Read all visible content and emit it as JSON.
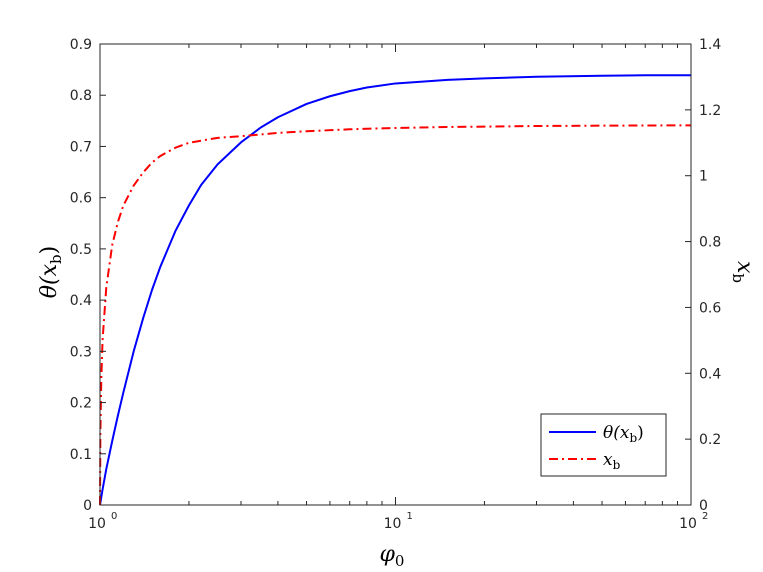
{
  "chart_data": {
    "type": "line",
    "x_scale": "log",
    "xlim": [
      1,
      100
    ],
    "ylim_left": [
      0,
      0.9
    ],
    "ylim_right": [
      0,
      1.4
    ],
    "xlabel": {
      "base": "φ",
      "sub": "0"
    },
    "ylabel_left": {
      "base": "θ(x",
      "sub": "b",
      "tail": ")"
    },
    "ylabel_right": {
      "base": "x",
      "sub": "b"
    },
    "x_ticks": [
      {
        "base": "10",
        "exp": "0",
        "value": 1
      },
      {
        "base": "10",
        "exp": "1",
        "value": 10
      },
      {
        "base": "10",
        "exp": "2",
        "value": 100
      }
    ],
    "y_left_ticks": [
      "0",
      "0.1",
      "0.2",
      "0.3",
      "0.4",
      "0.5",
      "0.6",
      "0.7",
      "0.8",
      "0.9"
    ],
    "y_left_tick_values": [
      0,
      0.1,
      0.2,
      0.3,
      0.4,
      0.5,
      0.6,
      0.7,
      0.8,
      0.9
    ],
    "y_right_ticks": [
      "0",
      "0.2",
      "0.4",
      "0.6",
      "0.8",
      "1",
      "1.2",
      "1.4"
    ],
    "y_right_tick_values": [
      0,
      0.2,
      0.4,
      0.6,
      0.8,
      1.0,
      1.2,
      1.4
    ],
    "legend_position": "bottom-right",
    "series": [
      {
        "name": "θ(x_b)",
        "legend": {
          "base": "θ(x",
          "sub": "b",
          "tail": ")"
        },
        "axis": "left",
        "color": "#0000ff",
        "style": "solid",
        "x": [
          1.0,
          1.02,
          1.05,
          1.1,
          1.15,
          1.2,
          1.3,
          1.4,
          1.5,
          1.6,
          1.8,
          2.0,
          2.2,
          2.5,
          3.0,
          3.5,
          4.0,
          5.0,
          6.0,
          7.0,
          8.0,
          10.0,
          15.0,
          20.0,
          30.0,
          50.0,
          70.0,
          100.0
        ],
        "values": [
          0.0,
          0.03,
          0.07,
          0.125,
          0.175,
          0.22,
          0.3,
          0.365,
          0.42,
          0.465,
          0.535,
          0.585,
          0.625,
          0.665,
          0.708,
          0.737,
          0.757,
          0.783,
          0.798,
          0.808,
          0.815,
          0.823,
          0.83,
          0.833,
          0.836,
          0.838,
          0.839,
          0.839
        ]
      },
      {
        "name": "x_b",
        "legend": {
          "base": "x",
          "sub": "b"
        },
        "axis": "right",
        "color": "#ff0000",
        "style": "dashdot",
        "x": [
          1.0,
          1.003,
          1.01,
          1.02,
          1.05,
          1.1,
          1.15,
          1.2,
          1.3,
          1.4,
          1.5,
          1.6,
          1.8,
          2.0,
          2.5,
          3.0,
          4.0,
          5.0,
          7.0,
          10.0,
          15.0,
          20.0,
          30.0,
          50.0,
          100.0
        ],
        "values": [
          0.0,
          0.22,
          0.38,
          0.5,
          0.66,
          0.79,
          0.86,
          0.91,
          0.97,
          1.01,
          1.04,
          1.06,
          1.085,
          1.1,
          1.115,
          1.12,
          1.13,
          1.135,
          1.141,
          1.145,
          1.148,
          1.149,
          1.151,
          1.152,
          1.153
        ]
      }
    ]
  }
}
